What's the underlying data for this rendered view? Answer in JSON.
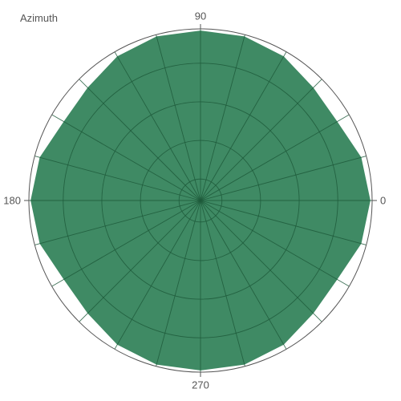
{
  "chart_data": {
    "type": "area",
    "title": "Azimuth",
    "angle_unit": "degrees",
    "orientation": "counterclockwise-from-right",
    "angle_tick_labels": [
      "0",
      "90",
      "180",
      "270"
    ],
    "angle_tick_values": [
      0,
      90,
      180,
      270
    ],
    "radial_range": [
      0,
      1
    ],
    "radial_grid": [
      0.125,
      0.35,
      0.575,
      0.8
    ],
    "spoke_step_degrees": 15,
    "grid": true,
    "series": [
      {
        "color": "#3f8a64",
        "theta": [
          0,
          15,
          30,
          45,
          60,
          75,
          90,
          105,
          120,
          135,
          150,
          165,
          180,
          195,
          210,
          225,
          240,
          255,
          270,
          285,
          300,
          315,
          330,
          345
        ],
        "r": [
          0.99,
          0.97,
          0.92,
          0.93,
          0.97,
          0.99,
          0.99,
          0.99,
          0.97,
          0.93,
          0.92,
          0.97,
          0.99,
          0.97,
          0.92,
          0.93,
          0.97,
          0.99,
          0.99,
          0.99,
          0.97,
          0.93,
          0.92,
          0.97
        ]
      }
    ]
  }
}
